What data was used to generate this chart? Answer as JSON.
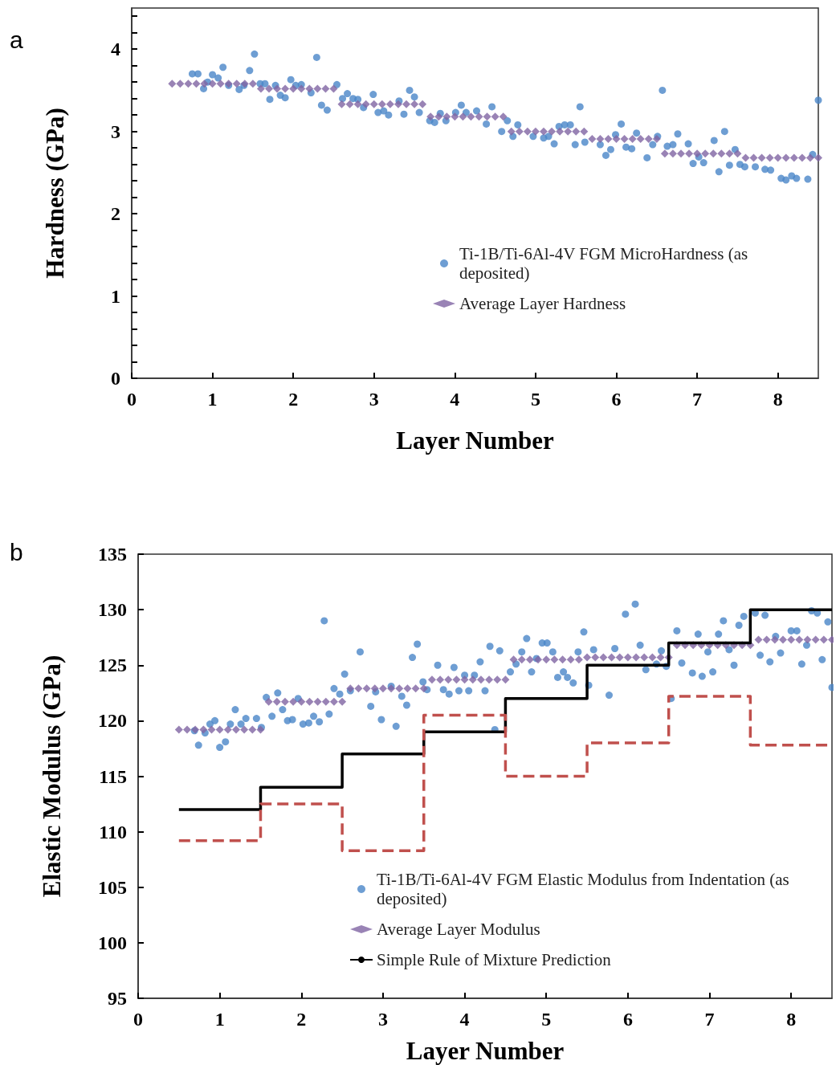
{
  "chart_data": [
    {
      "type": "scatter",
      "xlabel": "Layer Number",
      "ylabel": "Hardness (GPa)",
      "annotations": [
        "a"
      ],
      "xlim": [
        0,
        8.5
      ],
      "ylim": [
        0,
        4.5
      ],
      "xticks": [
        0,
        1,
        2,
        3,
        4,
        5,
        6,
        7,
        8
      ],
      "yticks": [
        0,
        {
          "value": 0.2,
          "label": null
        },
        {
          "value": 0.4,
          "label": null
        },
        {
          "value": 0.6,
          "label": null
        },
        {
          "value": 0.8,
          "label": null
        },
        1,
        {
          "value": 1.2,
          "label": null
        },
        {
          "value": 1.4,
          "label": null
        },
        {
          "value": 1.6,
          "label": null
        },
        {
          "value": 1.8,
          "label": null
        },
        2,
        {
          "value": 2.2,
          "label": null
        },
        {
          "value": 2.4,
          "label": null
        },
        {
          "value": 2.6,
          "label": null
        },
        {
          "value": 2.8,
          "label": null
        },
        3,
        {
          "value": 3.2,
          "label": null
        },
        {
          "value": 3.4,
          "label": null
        },
        {
          "value": 3.6,
          "label": null
        },
        {
          "value": 3.8,
          "label": null
        },
        4,
        {
          "value": 4.2,
          "label": null
        },
        {
          "value": 4.4,
          "label": null
        }
      ],
      "grid": false,
      "legend": "bottom right",
      "marker": "circle",
      "series": [
        {
          "name": "Ti-1B/Ti-6Al-4V FGM MicroHardness (as deposited)",
          "color": "#4a86c8",
          "x": [
            0.75,
            0.82,
            0.89,
            0.94,
            1.0,
            1.07,
            1.13,
            1.2,
            1.33,
            1.39,
            1.46,
            1.52,
            1.59,
            1.65,
            1.71,
            1.78,
            1.84,
            1.9,
            1.97,
            2.03,
            2.1,
            2.22,
            2.29,
            2.35,
            2.42,
            2.54,
            2.61,
            2.67,
            2.74,
            2.8,
            2.87,
            2.99,
            3.05,
            3.12,
            3.18,
            3.31,
            3.37,
            3.44,
            3.5,
            3.56,
            3.69,
            3.75,
            3.82,
            3.89,
            4.01,
            4.08,
            4.14,
            4.27,
            4.39,
            4.46,
            4.58,
            4.65,
            4.72,
            4.78,
            4.97,
            5.1,
            5.16,
            5.23,
            5.29,
            5.36,
            5.43,
            5.49,
            5.55,
            5.61,
            5.8,
            5.87,
            5.93,
            5.99,
            6.06,
            6.12,
            6.19,
            6.25,
            6.38,
            6.45,
            6.51,
            6.57,
            6.63,
            6.7,
            6.76,
            6.89,
            6.95,
            7.02,
            7.08,
            7.21,
            7.27,
            7.34,
            7.4,
            7.47,
            7.53,
            7.59,
            7.72,
            7.84,
            7.91,
            8.04,
            8.1,
            8.17,
            8.23,
            8.37,
            8.43,
            8.5
          ],
          "values": [
            3.7,
            3.7,
            3.52,
            3.6,
            3.69,
            3.65,
            3.78,
            3.56,
            3.51,
            3.56,
            3.74,
            3.94,
            3.58,
            3.58,
            3.39,
            3.56,
            3.44,
            3.41,
            3.63,
            3.56,
            3.57,
            3.47,
            3.9,
            3.32,
            3.26,
            3.57,
            3.4,
            3.46,
            3.4,
            3.39,
            3.29,
            3.45,
            3.23,
            3.25,
            3.2,
            3.37,
            3.21,
            3.5,
            3.42,
            3.23,
            3.13,
            3.11,
            3.22,
            3.13,
            3.23,
            3.32,
            3.23,
            3.25,
            3.09,
            3.3,
            3.0,
            3.13,
            2.94,
            3.08,
            2.94,
            2.92,
            2.94,
            2.85,
            3.06,
            3.08,
            3.08,
            2.84,
            3.3,
            2.87,
            2.84,
            2.71,
            2.78,
            2.96,
            3.09,
            2.81,
            2.79,
            2.98,
            2.68,
            2.84,
            2.94,
            3.5,
            2.82,
            2.84,
            2.97,
            2.85,
            2.61,
            2.69,
            2.62,
            2.89,
            2.51,
            3.0,
            2.59,
            2.78,
            2.6,
            2.57,
            2.57,
            2.54,
            2.53,
            2.43,
            2.41,
            2.46,
            2.43,
            2.42,
            2.72,
            3.38
          ]
        },
        {
          "name": "Average Layer Hardness",
          "color": "#8064a2",
          "marker": "diamond",
          "x": [
            0.5,
            0.6,
            0.7,
            0.8,
            0.9,
            1,
            1.1,
            1.2,
            1.3,
            1.4,
            1.5,
            1.6,
            1.7,
            1.8,
            1.9,
            2,
            2.1,
            2.2,
            2.3,
            2.4,
            2.5,
            2.6,
            2.7,
            2.8,
            2.9,
            3,
            3.1,
            3.2,
            3.3,
            3.4,
            3.5,
            3.6,
            3.7,
            3.8,
            3.9,
            4,
            4.1,
            4.2,
            4.3,
            4.4,
            4.5,
            4.6,
            4.7,
            4.8,
            4.9,
            5,
            5.1,
            5.2,
            5.3,
            5.4,
            5.5,
            5.6,
            5.7,
            5.8,
            5.9,
            6,
            6.1,
            6.2,
            6.3,
            6.4,
            6.5,
            6.6,
            6.7,
            6.8,
            6.9,
            7,
            7.1,
            7.2,
            7.3,
            7.4,
            7.5,
            7.6,
            7.7,
            7.8,
            7.9,
            8,
            8.1,
            8.2,
            8.3,
            8.4,
            8.5
          ],
          "values": [
            3.58,
            3.58,
            3.58,
            3.58,
            3.58,
            3.58,
            3.58,
            3.58,
            3.58,
            3.58,
            3.58,
            3.52,
            3.52,
            3.52,
            3.52,
            3.52,
            3.52,
            3.52,
            3.52,
            3.52,
            3.52,
            3.33,
            3.33,
            3.33,
            3.33,
            3.33,
            3.33,
            3.33,
            3.33,
            3.33,
            3.33,
            3.33,
            3.18,
            3.18,
            3.18,
            3.18,
            3.18,
            3.18,
            3.18,
            3.18,
            3.18,
            3.18,
            3.0,
            3.0,
            3.0,
            3.0,
            3.0,
            3.0,
            3.0,
            3.0,
            3.0,
            3.0,
            2.91,
            2.91,
            2.91,
            2.91,
            2.91,
            2.91,
            2.91,
            2.91,
            2.91,
            2.73,
            2.73,
            2.73,
            2.73,
            2.73,
            2.73,
            2.73,
            2.73,
            2.73,
            2.73,
            2.68,
            2.68,
            2.68,
            2.68,
            2.68,
            2.68,
            2.68,
            2.68,
            2.68,
            2.68
          ]
        }
      ]
    },
    {
      "type": "scatter",
      "xlabel": "Layer Number",
      "ylabel": "Elastic Modulus (GPa)",
      "annotations": [
        "b"
      ],
      "xlim": [
        0,
        8.5
      ],
      "ylim": [
        95,
        135
      ],
      "xticks": [
        0,
        1,
        2,
        3,
        4,
        5,
        6,
        7,
        8
      ],
      "yticks": [
        95,
        100,
        105,
        110,
        115,
        120,
        125,
        130,
        135
      ],
      "grid": false,
      "legend": "bottom right",
      "marker": "circle",
      "series": [
        {
          "name": "Ti-1B/Ti-6Al-4V FGM Elastic Modulus from Indentation (as deposited)",
          "color": "#4a86c8",
          "x": [
            0.69,
            0.74,
            0.82,
            0.88,
            0.94,
            1.0,
            1.07,
            1.13,
            1.19,
            1.26,
            1.32,
            1.45,
            1.51,
            1.57,
            1.64,
            1.71,
            1.77,
            1.83,
            1.89,
            1.96,
            2.02,
            2.09,
            2.15,
            2.22,
            2.28,
            2.34,
            2.4,
            2.47,
            2.53,
            2.6,
            2.72,
            2.85,
            2.91,
            2.98,
            3.1,
            3.16,
            3.23,
            3.29,
            3.36,
            3.42,
            3.49,
            3.54,
            3.67,
            3.74,
            3.81,
            3.87,
            3.93,
            4.0,
            4.05,
            4.12,
            4.19,
            4.25,
            4.31,
            4.37,
            4.43,
            4.56,
            4.63,
            4.7,
            4.76,
            4.82,
            4.88,
            4.95,
            5.01,
            5.08,
            5.14,
            5.21,
            5.26,
            5.33,
            5.39,
            5.46,
            5.52,
            5.58,
            5.77,
            5.84,
            5.97,
            6.09,
            6.15,
            6.22,
            6.35,
            6.41,
            6.47,
            6.53,
            6.6,
            6.66,
            6.79,
            6.86,
            6.91,
            6.98,
            7.04,
            7.11,
            7.17,
            7.24,
            7.3,
            7.36,
            7.42,
            7.56,
            7.62,
            7.68,
            7.74,
            7.81,
            7.87,
            8.0,
            8.07,
            8.13,
            8.19,
            8.25,
            8.32,
            8.38,
            8.45,
            8.5
          ],
          "values": [
            119.1,
            117.8,
            118.9,
            119.7,
            120.0,
            117.6,
            118.1,
            119.7,
            121.0,
            119.7,
            120.2,
            120.2,
            119.4,
            122.1,
            120.4,
            122.5,
            121.0,
            120.0,
            120.1,
            122.0,
            119.7,
            119.8,
            120.4,
            119.9,
            129.0,
            120.6,
            122.9,
            122.4,
            124.2,
            122.7,
            126.2,
            121.3,
            122.6,
            120.1,
            123.1,
            119.5,
            122.2,
            121.4,
            125.7,
            126.9,
            123.5,
            122.8,
            125.0,
            122.8,
            122.4,
            124.8,
            122.7,
            124.1,
            122.7,
            124.1,
            125.3,
            122.7,
            126.7,
            119.2,
            126.3,
            124.4,
            125.1,
            126.2,
            127.4,
            124.4,
            125.6,
            127.0,
            127.0,
            126.2,
            123.9,
            124.4,
            123.9,
            123.4,
            126.2,
            128.0,
            123.2,
            126.4,
            122.3,
            126.5,
            129.6,
            130.5,
            126.8,
            124.6,
            125.1,
            126.3,
            124.9,
            122.0,
            128.1,
            125.2,
            124.3,
            127.8,
            124.0,
            126.2,
            124.4,
            127.8,
            129.0,
            126.4,
            125.0,
            128.6,
            129.4,
            129.7,
            125.9,
            129.5,
            125.3,
            127.6,
            126.1,
            128.1,
            128.1,
            125.1,
            126.8,
            129.9,
            129.7,
            125.5,
            128.9,
            123.0
          ]
        },
        {
          "name": "Average Layer Modulus",
          "color": "#8064a2",
          "marker": "diamond",
          "x": [
            0.5,
            0.6,
            0.7,
            0.8,
            0.9,
            1,
            1.1,
            1.2,
            1.3,
            1.4,
            1.5,
            1.6,
            1.7,
            1.8,
            1.9,
            2,
            2.1,
            2.2,
            2.3,
            2.4,
            2.5,
            2.6,
            2.7,
            2.8,
            2.9,
            3,
            3.1,
            3.2,
            3.3,
            3.4,
            3.5,
            3.6,
            3.7,
            3.8,
            3.9,
            4,
            4.1,
            4.2,
            4.3,
            4.4,
            4.5,
            4.6,
            4.7,
            4.8,
            4.9,
            5,
            5.1,
            5.2,
            5.3,
            5.4,
            5.5,
            5.6,
            5.7,
            5.8,
            5.9,
            6,
            6.1,
            6.2,
            6.3,
            6.4,
            6.5,
            6.6,
            6.7,
            6.8,
            6.9,
            7,
            7.1,
            7.2,
            7.3,
            7.4,
            7.5,
            7.6,
            7.7,
            7.8,
            7.9,
            8,
            8.1,
            8.2,
            8.3,
            8.4,
            8.5
          ],
          "values": [
            119.2,
            119.2,
            119.2,
            119.2,
            119.2,
            119.2,
            119.2,
            119.2,
            119.2,
            119.2,
            119.2,
            121.7,
            121.7,
            121.7,
            121.7,
            121.7,
            121.7,
            121.7,
            121.7,
            121.7,
            121.7,
            122.9,
            122.9,
            122.9,
            122.9,
            122.9,
            122.9,
            122.9,
            122.9,
            122.9,
            122.9,
            123.7,
            123.7,
            123.7,
            123.7,
            123.7,
            123.7,
            123.7,
            123.7,
            123.7,
            123.7,
            125.5,
            125.5,
            125.5,
            125.5,
            125.5,
            125.5,
            125.5,
            125.5,
            125.5,
            125.7,
            125.7,
            125.7,
            125.7,
            125.7,
            125.7,
            125.7,
            125.7,
            125.7,
            125.7,
            125.7,
            126.8,
            126.8,
            126.8,
            126.8,
            126.8,
            126.8,
            126.8,
            126.8,
            126.8,
            126.8,
            127.3,
            127.3,
            127.3,
            127.3,
            127.3,
            127.3,
            127.3,
            127.3,
            127.3,
            127.3
          ]
        },
        {
          "name": "Simple Rule of Mixture Prediction",
          "type": "step",
          "color": "#000000",
          "line_style": "solid",
          "marker": "none",
          "x": [
            0.5,
            1.5,
            2.5,
            3.5,
            4.5,
            5.5,
            6.5,
            7.5,
            8.5
          ],
          "values": [
            112,
            114,
            117,
            119,
            122,
            125,
            127,
            130,
            130
          ]
        },
        {
          "type": "step",
          "color": "#c0504d",
          "line_style": "dashed",
          "marker": "none",
          "x": [
            0.5,
            1.5,
            2.5,
            3.5,
            4.5,
            5.5,
            6.5,
            7.5,
            8.5
          ],
          "values": [
            109.2,
            112.5,
            108.3,
            120.5,
            115,
            118,
            122.2,
            117.8,
            117.8
          ]
        }
      ]
    }
  ]
}
